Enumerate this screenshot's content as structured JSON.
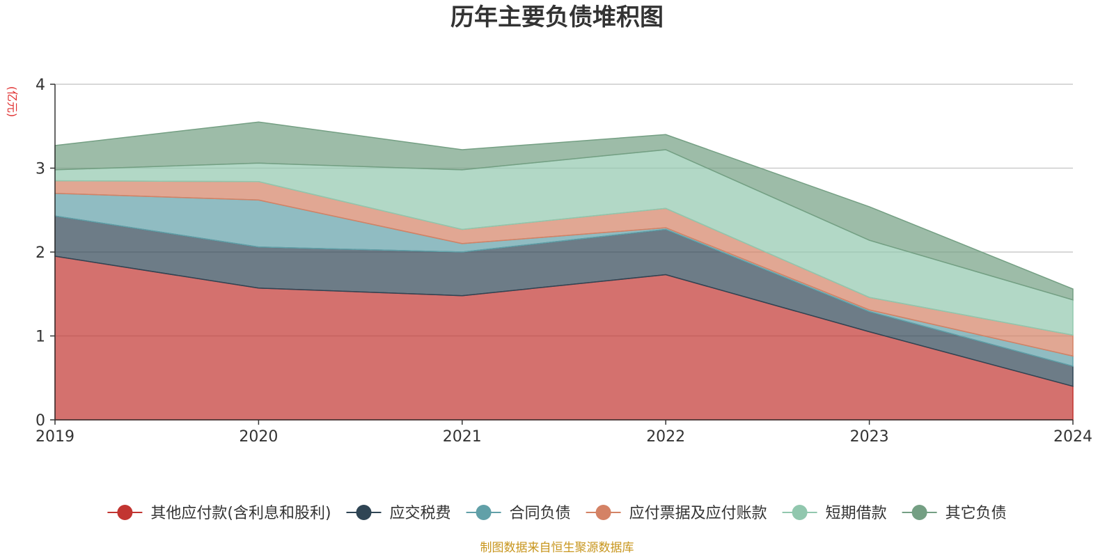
{
  "chart_data": {
    "type": "area",
    "stacked": true,
    "title": "历年主要负债堆积图",
    "ylabel": "(亿元)",
    "xlabel": "",
    "categories": [
      "2019",
      "2020",
      "2021",
      "2022",
      "2023",
      "2024"
    ],
    "ylim": [
      0,
      4
    ],
    "yticks": [
      0,
      1,
      2,
      3,
      4
    ],
    "grid": true,
    "legend_position": "bottom",
    "series": [
      {
        "name": "其他应付款(含利息和股利)",
        "values": [
          1.95,
          1.57,
          1.48,
          1.73,
          1.05,
          0.4
        ],
        "color": "#c23531"
      },
      {
        "name": "应交税费",
        "values": [
          0.48,
          0.49,
          0.52,
          0.54,
          0.24,
          0.24
        ],
        "color": "#2f4554"
      },
      {
        "name": "合同负债",
        "values": [
          0.27,
          0.56,
          0.1,
          0.02,
          0.02,
          0.12
        ],
        "color": "#61a0a8"
      },
      {
        "name": "应付票据及应付账款",
        "values": [
          0.15,
          0.22,
          0.17,
          0.23,
          0.15,
          0.25
        ],
        "color": "#d48265"
      },
      {
        "name": "短期借款",
        "values": [
          0.13,
          0.22,
          0.71,
          0.7,
          0.68,
          0.42
        ],
        "color": "#91c7ae"
      },
      {
        "name": "其它负债",
        "values": [
          0.29,
          0.49,
          0.24,
          0.18,
          0.4,
          0.13
        ],
        "color": "#749f83"
      }
    ]
  },
  "source_note": "制图数据来自恒生聚源数据库",
  "colors": {
    "unit_label": "#e03030",
    "source_note": "#c8961e",
    "grid": "#cccccc",
    "axis": "#333333"
  }
}
